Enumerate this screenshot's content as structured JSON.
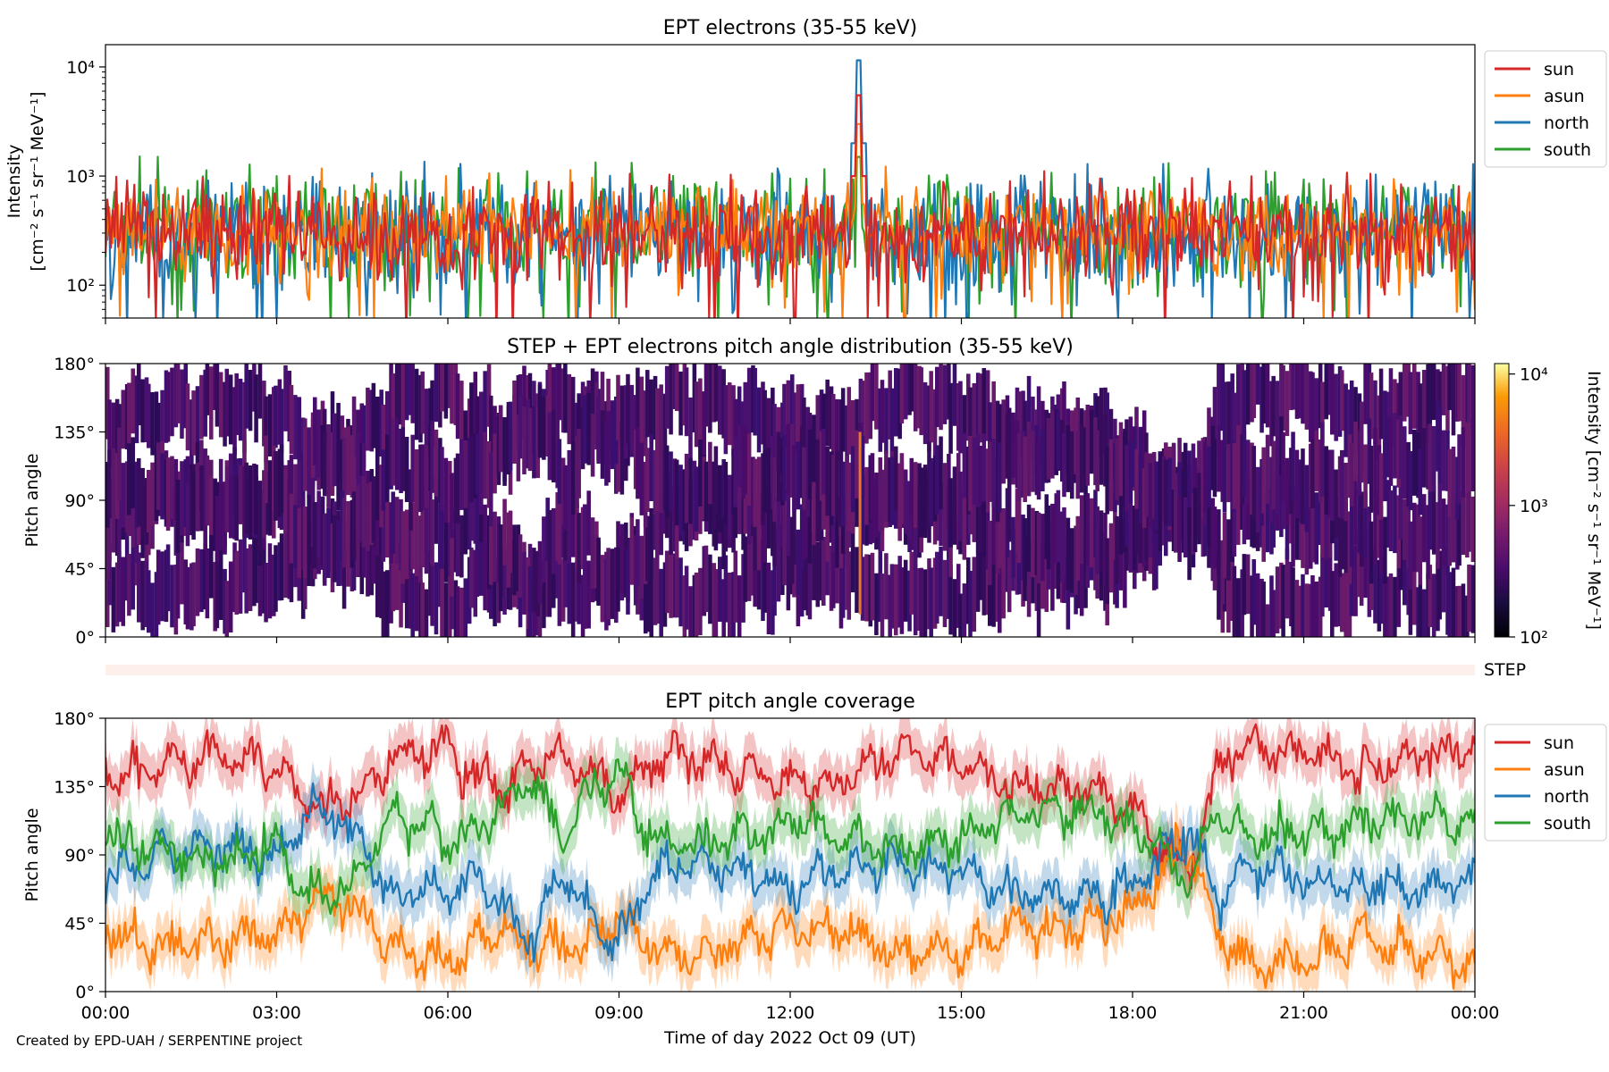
{
  "colors": {
    "sun": "#d62728",
    "asun": "#ff7f0e",
    "north": "#1f77b4",
    "south": "#2ca02c"
  },
  "credit": "Created by EPD-UAH / SERPENTINE project",
  "chart_data": [
    {
      "id": "intensity",
      "type": "line",
      "title": "EPT electrons (35-55 keV)",
      "ylabel_lines": [
        "Intensity",
        "[cm⁻² s⁻¹ sr⁻¹ MeV⁻¹]"
      ],
      "yscale": "log",
      "ylim": [
        50,
        16000
      ],
      "yticks": [
        {
          "value": 100,
          "label": "10²"
        },
        {
          "value": 1000,
          "label": "10³"
        },
        {
          "value": 10000,
          "label": "10⁴"
        }
      ],
      "legend": {
        "position": "outside-right",
        "entries": [
          "sun",
          "asun",
          "north",
          "south"
        ]
      },
      "series": [
        {
          "name": "south",
          "baseline": 320,
          "spread": 0.55
        },
        {
          "name": "north",
          "baseline": 300,
          "spread": 0.6
        },
        {
          "name": "asun",
          "baseline": 330,
          "spread": 0.45
        },
        {
          "name": "sun",
          "baseline": 300,
          "spread": 0.5
        }
      ],
      "event": {
        "hour": 13.2,
        "peaks": {
          "north": 11500,
          "sun": 5500,
          "asun": 3000,
          "south": 1500
        },
        "after": {
          "north": 2000,
          "sun": 1000
        }
      }
    },
    {
      "id": "pad",
      "type": "heatmap",
      "title": "STEP + EPT electrons pitch angle distribution (35-55 keV)",
      "ylabel": "Pitch angle",
      "ylim": [
        0,
        180
      ],
      "yticks": [
        {
          "value": 0,
          "label": "0°"
        },
        {
          "value": 45,
          "label": "45°"
        },
        {
          "value": 90,
          "label": "90°"
        },
        {
          "value": 135,
          "label": "135°"
        },
        {
          "value": 180,
          "label": "180°"
        }
      ],
      "colorbar": {
        "label": "Intensity [cm⁻² s⁻¹ sr⁻¹ MeV⁻¹]",
        "scale": "log",
        "range": [
          100,
          12000
        ],
        "ticks": [
          {
            "value": 100,
            "label": "10²"
          },
          {
            "value": 1000,
            "label": "10³"
          },
          {
            "value": 10000,
            "label": "10⁴"
          }
        ]
      },
      "step_label": "STEP"
    },
    {
      "id": "coverage",
      "type": "line",
      "title": "EPT pitch angle coverage",
      "ylabel": "Pitch angle",
      "xlabel": "Time of day 2022 Oct 09 (UT)",
      "ylim": [
        0,
        180
      ],
      "yticks": [
        {
          "value": 0,
          "label": "0°"
        },
        {
          "value": 45,
          "label": "45°"
        },
        {
          "value": 90,
          "label": "90°"
        },
        {
          "value": 135,
          "label": "135°"
        },
        {
          "value": 180,
          "label": "180°"
        }
      ],
      "xlim_hours": [
        0,
        24
      ],
      "xticks": [
        {
          "value": 0,
          "label": "00:00"
        },
        {
          "value": 3,
          "label": "03:00"
        },
        {
          "value": 6,
          "label": "06:00"
        },
        {
          "value": 9,
          "label": "09:00"
        },
        {
          "value": 12,
          "label": "12:00"
        },
        {
          "value": 15,
          "label": "15:00"
        },
        {
          "value": 18,
          "label": "18:00"
        },
        {
          "value": 21,
          "label": "21:00"
        },
        {
          "value": 24,
          "label": "00:00"
        }
      ],
      "legend": {
        "position": "outside-right",
        "entries": [
          "sun",
          "asun",
          "north",
          "south"
        ]
      },
      "band_halfwidth_deg": 15,
      "series": [
        {
          "name": "sun",
          "knots": [
            [
              0,
              140
            ],
            [
              1,
              148
            ],
            [
              2,
              155
            ],
            [
              3,
              150
            ],
            [
              3.5,
              125
            ],
            [
              4,
              120
            ],
            [
              4.5,
              128
            ],
            [
              5,
              155
            ],
            [
              6,
              160
            ],
            [
              6.5,
              140
            ],
            [
              7,
              135
            ],
            [
              7.5,
              152
            ],
            [
              8,
              155
            ],
            [
              8.5,
              140
            ],
            [
              9,
              128
            ],
            [
              9.5,
              150
            ],
            [
              10,
              158
            ],
            [
              11,
              150
            ],
            [
              12,
              138
            ],
            [
              13,
              140
            ],
            [
              14,
              158
            ],
            [
              15,
              150
            ],
            [
              16,
              132
            ],
            [
              17,
              135
            ],
            [
              18,
              125
            ],
            [
              18.5,
              95
            ],
            [
              19,
              80
            ],
            [
              19.5,
              150
            ],
            [
              20,
              162
            ],
            [
              21,
              158
            ],
            [
              22,
              145
            ],
            [
              23,
              155
            ],
            [
              24,
              160
            ]
          ]
        },
        {
          "name": "asun",
          "knots": [
            [
              0,
              40
            ],
            [
              1,
              30
            ],
            [
              2,
              32
            ],
            [
              3,
              38
            ],
            [
              3.5,
              55
            ],
            [
              4,
              62
            ],
            [
              4.5,
              50
            ],
            [
              5,
              28
            ],
            [
              6,
              20
            ],
            [
              6.5,
              35
            ],
            [
              7,
              42
            ],
            [
              7.5,
              28
            ],
            [
              8,
              25
            ],
            [
              8.5,
              35
            ],
            [
              9,
              50
            ],
            [
              9.5,
              32
            ],
            [
              10,
              22
            ],
            [
              11,
              30
            ],
            [
              12,
              42
            ],
            [
              13,
              40
            ],
            [
              14,
              22
            ],
            [
              15,
              28
            ],
            [
              16,
              45
            ],
            [
              17,
              42
            ],
            [
              18,
              55
            ],
            [
              18.5,
              80
            ],
            [
              19,
              100
            ],
            [
              19.5,
              35
            ],
            [
              20,
              18
            ],
            [
              21,
              22
            ],
            [
              22,
              35
            ],
            [
              23,
              25
            ],
            [
              24,
              20
            ]
          ]
        },
        {
          "name": "north",
          "knots": [
            [
              0,
              75
            ],
            [
              1,
              90
            ],
            [
              2,
              95
            ],
            [
              3,
              85
            ],
            [
              3.5,
              120
            ],
            [
              4,
              115
            ],
            [
              4.5,
              100
            ],
            [
              5,
              60
            ],
            [
              6,
              70
            ],
            [
              6.5,
              75
            ],
            [
              7,
              55
            ],
            [
              7.5,
              35
            ],
            [
              8,
              80
            ],
            [
              8.5,
              50
            ],
            [
              9,
              30
            ],
            [
              9.5,
              75
            ],
            [
              10,
              85
            ],
            [
              11,
              80
            ],
            [
              12,
              70
            ],
            [
              13,
              80
            ],
            [
              14,
              85
            ],
            [
              15,
              78
            ],
            [
              16,
              65
            ],
            [
              17,
              60
            ],
            [
              18,
              70
            ],
            [
              18.5,
              88
            ],
            [
              19,
              105
            ],
            [
              19.5,
              60
            ],
            [
              20,
              80
            ],
            [
              21,
              75
            ],
            [
              22,
              70
            ],
            [
              23,
              68
            ],
            [
              24,
              75
            ]
          ]
        },
        {
          "name": "south",
          "knots": [
            [
              0,
              105
            ],
            [
              1,
              92
            ],
            [
              2,
              85
            ],
            [
              3,
              100
            ],
            [
              3.5,
              65
            ],
            [
              4,
              62
            ],
            [
              4.5,
              80
            ],
            [
              5,
              118
            ],
            [
              6,
              100
            ],
            [
              6.5,
              105
            ],
            [
              7,
              122
            ],
            [
              7.5,
              140
            ],
            [
              8,
              100
            ],
            [
              8.5,
              130
            ],
            [
              9,
              145
            ],
            [
              9.5,
              105
            ],
            [
              10,
              95
            ],
            [
              11,
              102
            ],
            [
              12,
              112
            ],
            [
              13,
              100
            ],
            [
              14,
              95
            ],
            [
              15,
              102
            ],
            [
              16,
              118
            ],
            [
              17,
              122
            ],
            [
              18,
              108
            ],
            [
              18.5,
              90
            ],
            [
              19,
              75
            ],
            [
              19.5,
              120
            ],
            [
              20,
              100
            ],
            [
              21,
              105
            ],
            [
              22,
              112
            ],
            [
              23,
              115
            ],
            [
              24,
              110
            ]
          ]
        }
      ]
    }
  ]
}
